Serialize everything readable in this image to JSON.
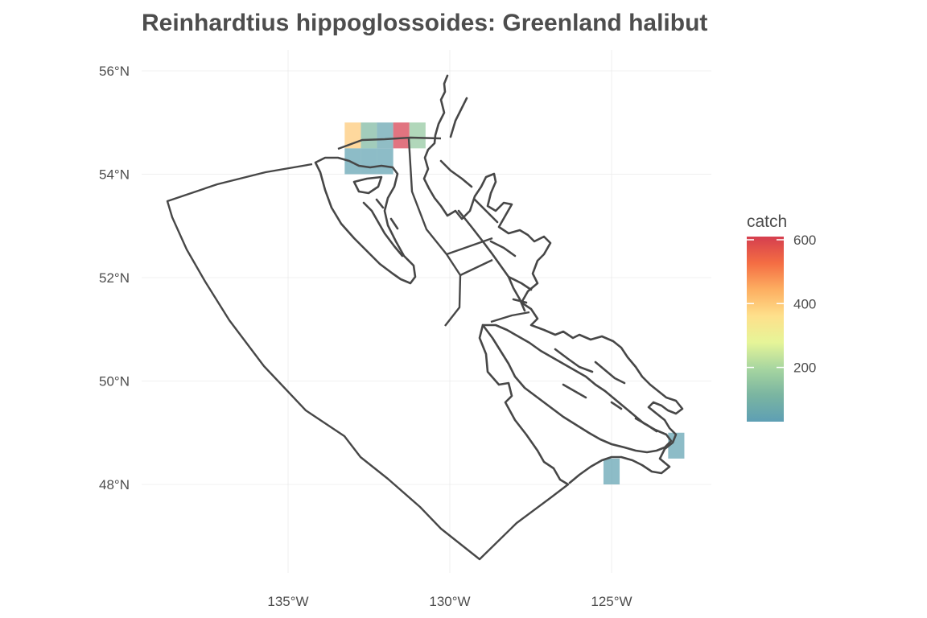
{
  "chart_data": {
    "type": "heatmap",
    "title": "Reinhardtius hippoglossoides: Greenland halibut",
    "xlabel": "",
    "ylabel": "",
    "x_ticks": [
      {
        "value": -135,
        "label": "135°W"
      },
      {
        "value": -130,
        "label": "130°W"
      },
      {
        "value": -125,
        "label": "125°W"
      }
    ],
    "y_ticks": [
      {
        "value": 56,
        "label": "56°N"
      },
      {
        "value": 54,
        "label": "54°N"
      },
      {
        "value": 52,
        "label": "52°N"
      },
      {
        "value": 50,
        "label": "50°N"
      },
      {
        "value": 48,
        "label": "48°N"
      }
    ],
    "grid": true,
    "legend": {
      "title": "catch",
      "position": "right",
      "min": 30,
      "max": 610,
      "ticks": [
        {
          "value": 600,
          "label": "600"
        },
        {
          "value": 400,
          "label": "400"
        },
        {
          "value": 200,
          "label": "200"
        }
      ],
      "colors": [
        "#5e9fb4",
        "#7ab5a1",
        "#a6d5a0",
        "#e6f598",
        "#fee08b",
        "#fdae61",
        "#f46d43",
        "#d53e4f"
      ]
    },
    "cells": [
      {
        "lon": -133,
        "lat": 54.75,
        "catch": 400
      },
      {
        "lon": -132.5,
        "lat": 54.75,
        "catch": 120
      },
      {
        "lon": -132,
        "lat": 54.75,
        "catch": 50
      },
      {
        "lon": -131.5,
        "lat": 54.75,
        "catch": 610
      },
      {
        "lon": -131,
        "lat": 54.75,
        "catch": 160
      },
      {
        "lon": -133,
        "lat": 54.25,
        "catch": 40
      },
      {
        "lon": -132.5,
        "lat": 54.25,
        "catch": 40
      },
      {
        "lon": -132,
        "lat": 54.25,
        "catch": 40
      },
      {
        "lon": -125,
        "lat": 48.25,
        "catch": 40
      },
      {
        "lon": -123,
        "lat": 48.75,
        "catch": 40
      }
    ]
  }
}
